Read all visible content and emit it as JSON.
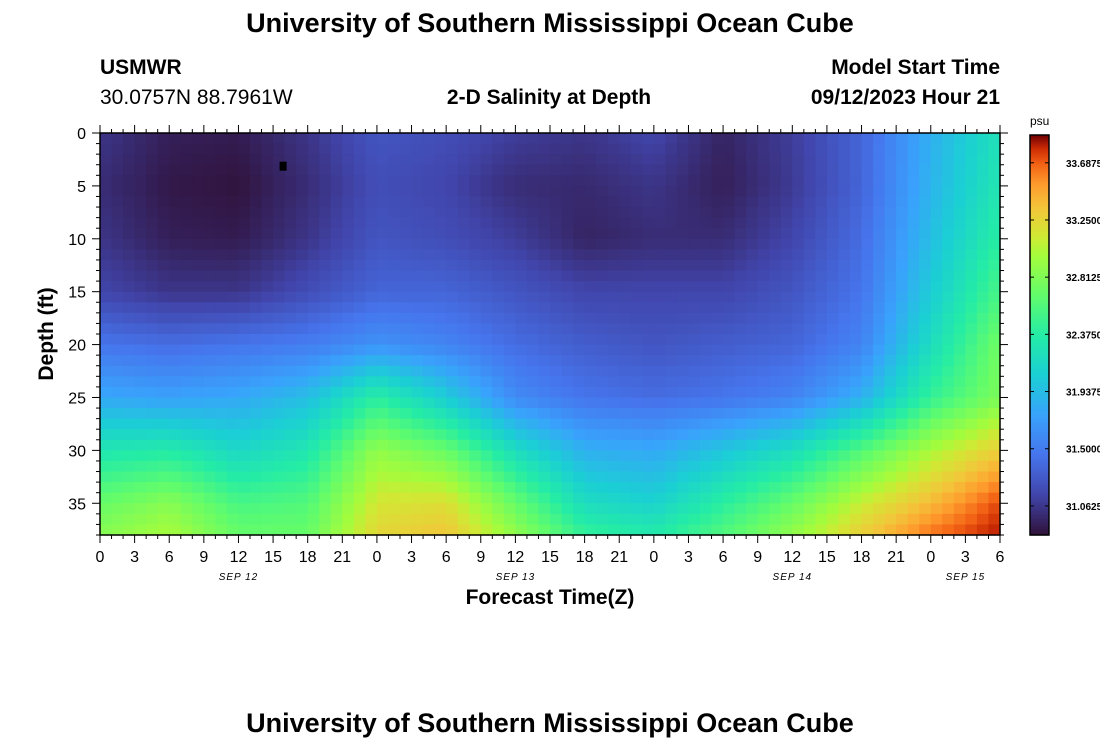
{
  "page": {
    "title": "University of Southern Mississippi Ocean Cube",
    "title_repeat": "University of Southern Mississippi Ocean Cube",
    "station_name": "USMWR",
    "station_coords": "30.0757N  88.7961W",
    "subtitle": "2-D Salinity at Depth",
    "model_start_label": "Model Start Time",
    "model_start_value": "09/12/2023 Hour 21"
  },
  "chart_data": {
    "type": "heatmap",
    "title": "2-D Salinity at Depth",
    "xlabel": "Forecast Time(Z)",
    "ylabel": "Depth (ft)",
    "x_unit": "hours from 09/12 00Z",
    "xlim": [
      0,
      78
    ],
    "ylim": [
      0,
      38
    ],
    "y_inverted": true,
    "x_tick_labels": [
      "0",
      "3",
      "6",
      "9",
      "12",
      "15",
      "18",
      "21",
      "0",
      "3",
      "6",
      "9",
      "12",
      "15",
      "18",
      "21",
      "0",
      "3",
      "6",
      "9",
      "12",
      "15",
      "18",
      "21",
      "0",
      "3",
      "6"
    ],
    "x_ticks_hours": [
      0,
      3,
      6,
      9,
      12,
      15,
      18,
      21,
      24,
      27,
      30,
      33,
      36,
      39,
      42,
      45,
      48,
      51,
      54,
      57,
      60,
      63,
      66,
      69,
      72,
      75,
      78
    ],
    "date_labels": [
      {
        "label": "SEP 12",
        "hour": 12
      },
      {
        "label": "SEP 13",
        "hour": 36
      },
      {
        "label": "SEP 14",
        "hour": 60
      },
      {
        "label": "SEP 15",
        "hour": 75
      }
    ],
    "y_ticks": [
      0,
      5,
      10,
      15,
      20,
      25,
      30,
      35
    ],
    "y_tick_labels": [
      "0",
      "5",
      "10",
      "15",
      "20",
      "25",
      "30",
      "35"
    ],
    "colorbar": {
      "unit": "psu",
      "min": 30.84,
      "max": 33.9,
      "tick_values": [
        33.6875,
        33.25,
        32.8125,
        32.375,
        31.9375,
        31.5,
        31.0625
      ],
      "tick_labels": [
        "33.6875",
        "33.2500",
        "32.8125",
        "32.3750",
        "31.9375",
        "31.5000",
        "31.0625"
      ]
    },
    "grid_hours": [
      0,
      6,
      12,
      18,
      24,
      30,
      36,
      42,
      48,
      54,
      60,
      66,
      72,
      78
    ],
    "grid_depths": [
      0,
      5,
      10,
      15,
      20,
      25,
      30,
      35,
      38
    ],
    "values": [
      [
        31.05,
        30.92,
        30.9,
        31.05,
        31.25,
        31.2,
        31.1,
        31.05,
        31.15,
        30.95,
        31.1,
        31.35,
        31.85,
        32.25
      ],
      [
        31.0,
        30.88,
        30.85,
        31.0,
        31.2,
        31.15,
        31.0,
        30.98,
        31.05,
        30.92,
        31.08,
        31.35,
        31.88,
        32.3
      ],
      [
        31.05,
        30.92,
        30.9,
        31.05,
        31.25,
        31.2,
        31.1,
        30.95,
        31.0,
        31.0,
        31.15,
        31.4,
        31.95,
        32.4
      ],
      [
        31.15,
        31.05,
        31.05,
        31.2,
        31.35,
        31.35,
        31.25,
        31.15,
        31.15,
        31.15,
        31.25,
        31.45,
        32.05,
        32.55
      ],
      [
        31.45,
        31.4,
        31.45,
        31.5,
        31.65,
        31.55,
        31.4,
        31.3,
        31.25,
        31.3,
        31.35,
        31.55,
        32.2,
        32.75
      ],
      [
        31.8,
        31.75,
        31.8,
        31.95,
        32.4,
        32.05,
        31.6,
        31.45,
        31.4,
        31.45,
        31.55,
        31.85,
        32.45,
        32.8
      ],
      [
        32.3,
        32.35,
        32.15,
        32.3,
        32.9,
        32.7,
        32.2,
        31.85,
        31.8,
        32.0,
        32.2,
        32.6,
        33.0,
        33.3
      ],
      [
        32.7,
        32.85,
        32.55,
        32.6,
        33.15,
        33.2,
        32.7,
        32.2,
        32.1,
        32.4,
        32.7,
        33.1,
        33.4,
        33.75
      ],
      [
        32.85,
        33.0,
        32.7,
        32.7,
        33.25,
        33.35,
        32.9,
        32.45,
        32.35,
        32.6,
        32.9,
        33.3,
        33.65,
        33.85
      ]
    ]
  }
}
